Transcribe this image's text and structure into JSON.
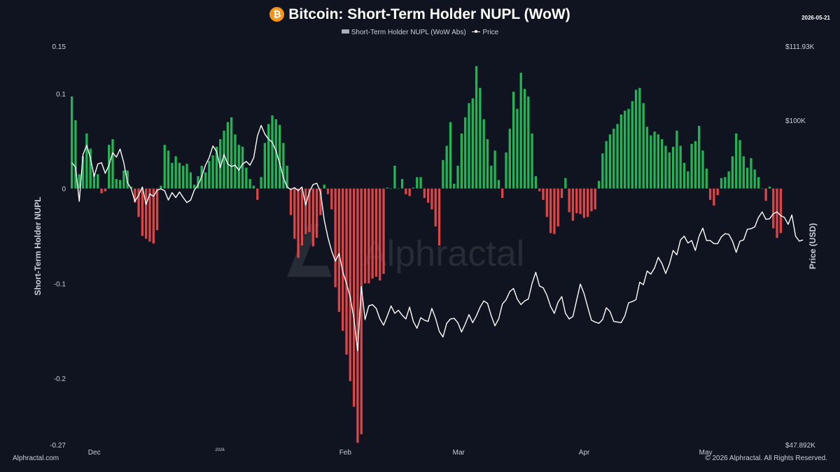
{
  "header": {
    "title": "Bitcoin: Short-Term Holder NUPL (WoW)",
    "date": "2026-05-21",
    "icon": "bitcoin-icon",
    "icon_glyph": "₿"
  },
  "legend": {
    "bar_label": "Short-Term Holder NUPL (WoW Abs)",
    "line_label": "Price"
  },
  "watermark": {
    "text": "Alphractal"
  },
  "footer": {
    "left": "Alphractal.com",
    "right": "© 2026 Alphractal. All Rights Reserved."
  },
  "colors": {
    "positive": "#22b455",
    "negative": "#e04545",
    "price": "#ffffff",
    "background": "#0f1420"
  },
  "chart_data": {
    "type": "bar",
    "ylabel": "Short-Term Holder NUPL",
    "y2label": "Price (USD)",
    "ylim": [
      -0.27,
      0.15
    ],
    "y_ticks": [
      {
        "value": 0.15,
        "label": "0.15"
      },
      {
        "value": 0.1,
        "label": "0.1"
      },
      {
        "value": 0,
        "label": "0"
      },
      {
        "value": -0.1,
        "label": "-0.1"
      },
      {
        "value": -0.2,
        "label": "-0.2"
      },
      {
        "value": -0.27,
        "label": "-0.27"
      }
    ],
    "y2lim": [
      47892,
      111930
    ],
    "y2_ticks": [
      {
        "value": 111930,
        "label": "$111.93K"
      },
      {
        "value": 100000,
        "label": "$100K"
      },
      {
        "value": 47892,
        "label": "$47.892K"
      }
    ],
    "x_start": "2025-11-25",
    "x_end": "2026-05-20",
    "x_ticks": [
      {
        "date": "2025-12-01",
        "label": "Dec"
      },
      {
        "date": "2026-01-01",
        "label": "2026",
        "small": true
      },
      {
        "date": "2026-02-01",
        "label": "Feb"
      },
      {
        "date": "2026-03-01",
        "label": "Mar"
      },
      {
        "date": "2026-04-01",
        "label": "Apr"
      },
      {
        "date": "2026-05-01",
        "label": "May"
      }
    ],
    "bars": [
      0.097,
      0.072,
      0.015,
      0.034,
      0.058,
      0.042,
      0.016,
      0.015,
      -0.005,
      -0.003,
      0.046,
      0.052,
      0.01,
      0.009,
      0.019,
      0.019,
      0.002,
      -0.015,
      -0.03,
      -0.05,
      -0.053,
      -0.056,
      -0.058,
      -0.044,
      0.003,
      0.046,
      0.04,
      0.027,
      0.034,
      0.027,
      0.024,
      0.026,
      0.017,
      0.004,
      0.013,
      0.024,
      0.017,
      0.029,
      0.035,
      0.044,
      0.052,
      0.061,
      0.07,
      0.075,
      0.057,
      0.046,
      0.044,
      0.022,
      0.01,
      0.003,
      -0.012,
      0.012,
      0.048,
      0.068,
      0.077,
      0.073,
      0.067,
      0.048,
      0.024,
      -0.028,
      -0.053,
      -0.073,
      -0.06,
      -0.048,
      -0.046,
      -0.061,
      -0.052,
      -0.028,
      0.004,
      -0.006,
      -0.022,
      -0.104,
      -0.13,
      -0.15,
      -0.175,
      -0.203,
      -0.23,
      -0.268,
      -0.259,
      -0.1,
      -0.1,
      -0.095,
      -0.093,
      -0.097,
      -0.09,
      0.001,
      0.0,
      0.024,
      0.0,
      0.01,
      -0.006,
      -0.008,
      0.001,
      0.012,
      0.012,
      -0.01,
      -0.015,
      -0.022,
      -0.04,
      -0.06,
      0.03,
      0.045,
      0.07,
      0.005,
      0.024,
      0.058,
      0.075,
      0.09,
      0.095,
      0.129,
      0.106,
      0.073,
      0.052,
      0.024,
      0.04,
      0.009,
      -0.01,
      0.038,
      0.063,
      0.102,
      0.084,
      0.122,
      0.105,
      0.097,
      0.058,
      0.013,
      -0.003,
      -0.012,
      -0.03,
      -0.047,
      -0.048,
      -0.04,
      -0.01,
      0.011,
      -0.025,
      -0.034,
      -0.026,
      -0.027,
      -0.031,
      -0.03,
      -0.024,
      -0.022,
      0.008,
      0.037,
      0.05,
      0.057,
      0.063,
      0.068,
      0.078,
      0.082,
      0.084,
      0.092,
      0.104,
      0.106,
      0.09,
      0.065,
      0.056,
      0.06,
      0.057,
      0.052,
      0.045,
      0.038,
      0.044,
      0.061,
      0.045,
      0.027,
      0.018,
      0.047,
      0.05,
      0.066,
      0.04,
      0.021,
      -0.012,
      -0.018,
      -0.007,
      0.011,
      0.012,
      0.018,
      0.034,
      0.058,
      0.051,
      0.034,
      0.022,
      0.032,
      0.02,
      0.012,
      0.0,
      -0.013,
      0.002,
      -0.042,
      -0.052,
      -0.047
    ],
    "price": [
      93200,
      92500,
      87000,
      94500,
      96000,
      94000,
      91000,
      93000,
      93200,
      91500,
      92800,
      94800,
      94100,
      95400,
      93200,
      90000,
      89000,
      87000,
      88000,
      89300,
      86500,
      88200,
      87800,
      88800,
      89000,
      88700,
      87200,
      88400,
      87600,
      88500,
      87600,
      86800,
      87200,
      88800,
      89600,
      91000,
      92800,
      94000,
      95900,
      95000,
      92400,
      94500,
      93000,
      92600,
      92800,
      92000,
      93000,
      93400,
      92800,
      94000,
      97500,
      99200,
      97800,
      97000,
      96500,
      95100,
      93100,
      90800,
      89300,
      88900,
      89200,
      88700,
      89300,
      86400,
      88500,
      89700,
      89900,
      88500,
      84000,
      81200,
      79000,
      77400,
      78600,
      75700,
      73800,
      71600,
      68200,
      63000,
      73300,
      68000,
      70200,
      70400,
      69800,
      68100,
      67100,
      68600,
      70200,
      69000,
      69500,
      68700,
      68100,
      70000,
      67700,
      66600,
      68300,
      67900,
      67700,
      69800,
      68200,
      66100,
      65200,
      67400,
      68100,
      68200,
      67500,
      66000,
      67300,
      68800,
      67500,
      68600,
      70000,
      71000,
      70600,
      68600,
      67000,
      68100,
      70500,
      71200,
      72500,
      73000,
      71300,
      70400,
      71000,
      71300,
      73800,
      75600,
      73400,
      73100,
      71900,
      70100,
      69000,
      70800,
      71700,
      69000,
      68100,
      68500,
      71100,
      73700,
      72200,
      70000,
      67900,
      67600,
      67400,
      68000,
      69900,
      69300,
      67700,
      67600,
      67500,
      68600,
      70700,
      70900,
      71200,
      74000,
      73600,
      75800,
      75300,
      76300,
      78000,
      77000,
      75400,
      76900,
      79100,
      78400,
      80800,
      81400,
      80300,
      80700,
      79100,
      81400,
      82700,
      80700,
      80700,
      80200,
      80200,
      81300,
      81800,
      81700,
      80600,
      78800,
      80600,
      80800,
      82500,
      82600,
      82900,
      84400,
      85300,
      84100,
      84200,
      85000,
      85300,
      84700,
      84400,
      83300,
      84800,
      81400,
      80600,
      80800
    ]
  }
}
